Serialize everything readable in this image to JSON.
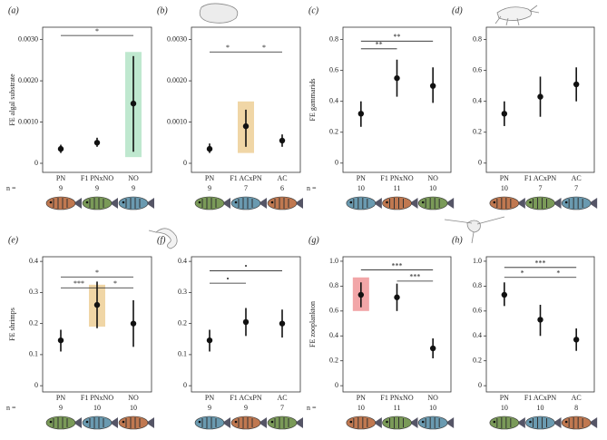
{
  "chart_data": [
    {
      "type": "pointrange",
      "panel_label": "(a)",
      "ylabel": "FE algal substrate",
      "n_label": "n =",
      "categories": [
        "PN",
        "F1 PNxNO",
        "NO"
      ],
      "n": [
        9,
        9,
        9
      ],
      "values": [
        0.00035,
        0.0005,
        0.00145
      ],
      "lower": [
        0.00025,
        0.0004,
        0.00028
      ],
      "upper": [
        0.00045,
        0.00062,
        0.0026
      ],
      "highlight": {
        "color": "#bfe8cf",
        "low": [
          null,
          null,
          0.00015
        ],
        "high": [
          null,
          null,
          0.0027
        ]
      },
      "significance": [
        {
          "from": 0,
          "to": 2,
          "y": 0.0031,
          "label": "*"
        }
      ],
      "ylim": [
        -0.00022,
        0.0033
      ],
      "yticks": [
        0,
        {
          "value": 0.001,
          "label": "0.0010"
        },
        {
          "value": 0.002,
          "label": "0.0020"
        },
        {
          "value": 0.003,
          "label": "0.0030"
        }
      ]
    },
    {
      "type": "pointrange",
      "panel_label": "(b)",
      "categories": [
        "PN",
        "F1 ACxPN",
        "AC"
      ],
      "n": [
        9,
        7,
        6
      ],
      "values": [
        0.00035,
        0.0009,
        0.00055
      ],
      "lower": [
        0.00025,
        0.0004,
        0.0004
      ],
      "upper": [
        0.00048,
        0.0013,
        0.0007
      ],
      "highlight": {
        "color": "#f0d6a6",
        "low": [
          null,
          0.00025,
          null
        ],
        "high": [
          null,
          0.0015,
          null
        ]
      },
      "significance": [
        {
          "from": 0,
          "to": 1,
          "y": 0.0027,
          "label": "*"
        },
        {
          "from": 1,
          "to": 2,
          "y": 0.0027,
          "label": "*"
        }
      ],
      "ylim": [
        -0.00022,
        0.0033
      ],
      "yticks": [
        0,
        {
          "value": 0.001,
          "label": "0.0010"
        },
        {
          "value": 0.002,
          "label": "0.0020"
        },
        {
          "value": 0.003,
          "label": "0.0030"
        }
      ]
    },
    {
      "type": "pointrange",
      "panel_label": "(c)",
      "ylabel": "FE gammarids",
      "n_label": "n =",
      "categories": [
        "PN",
        "F1 PNxNO",
        "NO"
      ],
      "n": [
        10,
        11,
        10
      ],
      "values": [
        0.32,
        0.55,
        0.5
      ],
      "lower": [
        0.235,
        0.43,
        0.39
      ],
      "upper": [
        0.4,
        0.67,
        0.62
      ],
      "significance": [
        {
          "from": 0,
          "to": 1,
          "y": 0.74,
          "label": "**"
        },
        {
          "from": 0,
          "to": 2,
          "y": 0.79,
          "label": "**"
        }
      ],
      "ylim": [
        -0.06,
        0.88
      ],
      "yticks": [
        0,
        0.2,
        0.4,
        0.6,
        0.8
      ]
    },
    {
      "type": "pointrange",
      "panel_label": "(d)",
      "categories": [
        "PN",
        "F1 ACxPN",
        "AC"
      ],
      "n": [
        10,
        7,
        7
      ],
      "values": [
        0.32,
        0.43,
        0.51
      ],
      "lower": [
        0.24,
        0.3,
        0.4
      ],
      "upper": [
        0.4,
        0.56,
        0.62
      ],
      "ylim": [
        -0.06,
        0.88
      ],
      "yticks": [
        0,
        0.2,
        0.4,
        0.6,
        0.8
      ]
    },
    {
      "type": "pointrange",
      "panel_label": "(e)",
      "ylabel": "FE shrimps",
      "n_label": "n =",
      "categories": [
        "PN",
        "F1 PNxNO",
        "NO"
      ],
      "n": [
        9,
        10,
        10
      ],
      "values": [
        0.146,
        0.26,
        0.2
      ],
      "lower": [
        0.11,
        0.185,
        0.125
      ],
      "upper": [
        0.18,
        0.335,
        0.275
      ],
      "highlight": {
        "color": "#f0d6a6",
        "low": [
          null,
          0.19,
          null
        ],
        "high": [
          null,
          0.325,
          null
        ]
      },
      "significance": [
        {
          "from": 0,
          "to": 2,
          "y": 0.35,
          "label": "*"
        },
        {
          "from": 0,
          "to": 1,
          "y": 0.315,
          "label": "***"
        },
        {
          "from": 1,
          "to": 2,
          "y": 0.315,
          "label": "*"
        }
      ],
      "ylim": [
        -0.02,
        0.415
      ],
      "yticks": [
        0,
        0.1,
        0.2,
        0.3,
        0.4
      ]
    },
    {
      "type": "pointrange",
      "panel_label": "(f)",
      "categories": [
        "PN",
        "F1 ACxPN",
        "AC"
      ],
      "n": [
        9,
        9,
        7
      ],
      "values": [
        0.146,
        0.205,
        0.2
      ],
      "lower": [
        0.11,
        0.16,
        0.155
      ],
      "upper": [
        0.18,
        0.25,
        0.245
      ],
      "significance": [
        {
          "from": 0,
          "to": 2,
          "y": 0.37,
          "label": "•"
        },
        {
          "from": 0,
          "to": 1,
          "y": 0.33,
          "label": "•"
        }
      ],
      "ylim": [
        -0.02,
        0.415
      ],
      "yticks": [
        0,
        0.1,
        0.2,
        0.3,
        0.4
      ]
    },
    {
      "type": "pointrange",
      "panel_label": "(g)",
      "ylabel": "FE zooplankton",
      "n_label": "n =",
      "categories": [
        "PN",
        "F1 PNxNO",
        "NO"
      ],
      "n": [
        10,
        11,
        10
      ],
      "values": [
        0.73,
        0.71,
        0.3
      ],
      "lower": [
        0.63,
        0.6,
        0.22
      ],
      "upper": [
        0.83,
        0.82,
        0.38
      ],
      "highlight": {
        "color": "#f2a6a8",
        "low": [
          0.6,
          null,
          null
        ],
        "high": [
          0.87,
          null,
          null
        ]
      },
      "significance": [
        {
          "from": 0,
          "to": 2,
          "y": 0.93,
          "label": "***"
        },
        {
          "from": 1,
          "to": 2,
          "y": 0.84,
          "label": "***"
        }
      ],
      "ylim": [
        -0.05,
        1.036
      ],
      "yticks": [
        0,
        0.2,
        0.4,
        0.6,
        0.8,
        {
          "value": 1,
          "label": "1.0"
        }
      ]
    },
    {
      "type": "pointrange",
      "panel_label": "(h)",
      "categories": [
        "PN",
        "F1 ACxPN",
        "AC"
      ],
      "n": [
        10,
        10,
        8
      ],
      "values": [
        0.73,
        0.53,
        0.37
      ],
      "lower": [
        0.64,
        0.4,
        0.28
      ],
      "upper": [
        0.83,
        0.65,
        0.46
      ],
      "significance": [
        {
          "from": 0,
          "to": 2,
          "y": 0.95,
          "label": "***"
        },
        {
          "from": 0,
          "to": 1,
          "y": 0.87,
          "label": "*"
        },
        {
          "from": 1,
          "to": 2,
          "y": 0.87,
          "label": "*"
        }
      ],
      "ylim": [
        -0.05,
        1.036
      ],
      "yticks": [
        0,
        0.2,
        0.4,
        0.6,
        0.8,
        {
          "value": 1,
          "label": "1.0"
        }
      ]
    }
  ]
}
